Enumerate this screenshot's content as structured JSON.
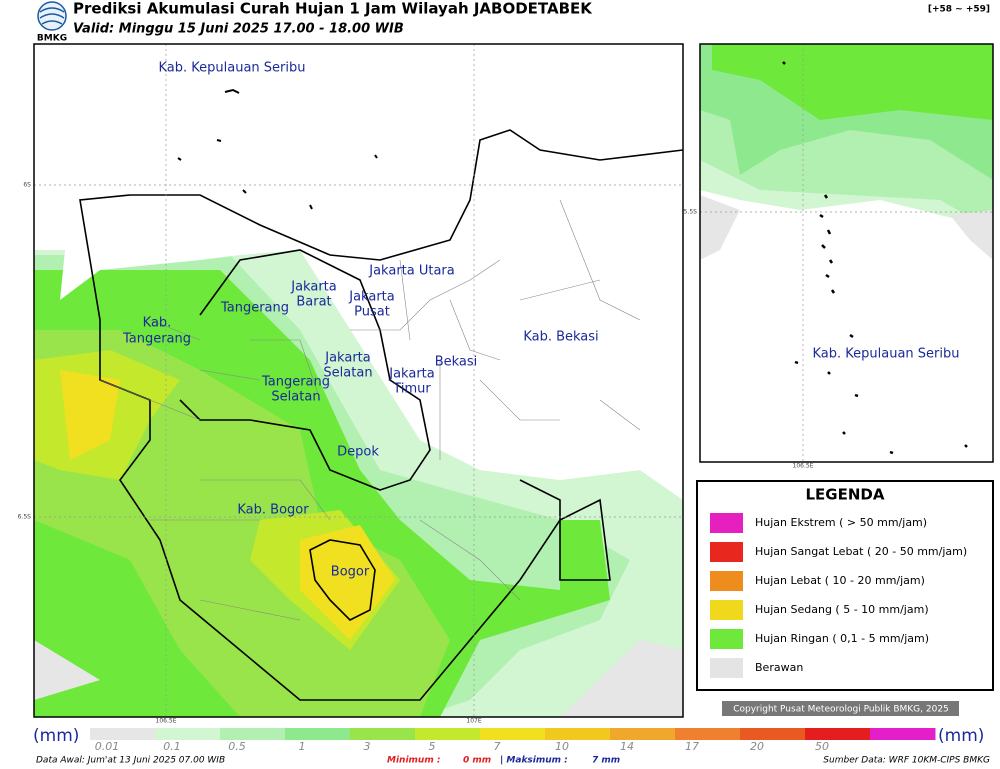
{
  "header": {
    "title": "Prediksi Akumulasi Curah Hujan 1 Jam Wilayah JABODETABEK",
    "valid": "Valid: Minggu 15 Juni 2025 17.00 - 18.00 WIB",
    "code": "[+58 ~ +59]",
    "logo": "BMKG"
  },
  "map": {
    "labels": [
      "Kab. Kepulauan Seribu",
      "Jakarta Utara",
      "Jakarta",
      "Barat",
      "Jakarta",
      "Pusat",
      "Tangerang",
      "Kab.",
      "Tangerang",
      "Jakarta",
      "Selatan",
      "Tangerang",
      "Selatan",
      "Jakarta",
      "Timur",
      "Bekasi",
      "Kab. Bekasi",
      "Depok",
      "Kab. Bogor",
      "Bogor"
    ],
    "axis": [
      "6S",
      "6.5S",
      "106.5E",
      "107E"
    ]
  },
  "inset": {
    "label": "Kab. Kepulauan Seribu",
    "axis": [
      "5.5S",
      "106.5E"
    ]
  },
  "legend": {
    "title": "LEGENDA",
    "items": [
      {
        "label": "Hujan Ekstrem ( > 50 mm/jam)",
        "color": "#e61fbf"
      },
      {
        "label": "Hujan Sangat Lebat ( 20 - 50 mm/jam)",
        "color": "#e8281e"
      },
      {
        "label": "Hujan Lebat ( 10 - 20 mm/jam)",
        "color": "#ef8c1e"
      },
      {
        "label": "Hujan Sedang ( 5 - 10 mm/jam)",
        "color": "#f0d81c"
      },
      {
        "label": "Hujan Ringan ( 0,1 - 5 mm/jam)",
        "color": "#6ee83a"
      },
      {
        "label": "Berawan",
        "color": "#e4e4e4"
      }
    ]
  },
  "copyright": "Copyright Pusat Meteorologi Publik BMKG, 2025",
  "colorbar": {
    "unit": "(mm)",
    "ticks": [
      "0.01",
      "0.1",
      "0.5",
      "1",
      "3",
      "5",
      "7",
      "10",
      "14",
      "17",
      "20",
      "50"
    ],
    "colors": [
      "#e6e6e6",
      "#d2f5d2",
      "#b2f0b2",
      "#8ee88e",
      "#98e44a",
      "#c4e82c",
      "#f0e020",
      "#f0c820",
      "#f0a82c",
      "#ee8030",
      "#e85a22",
      "#e41e1e",
      "#e41ec8"
    ]
  },
  "footer": {
    "source_init": "Data Awal: Jum'at 13 Juni 2025 07.00 WIB",
    "min_label": "Minimum :",
    "min_value": "0 mm",
    "max_label": "| Maksimum :",
    "max_value": "7 mm",
    "source": "Sumber Data: WRF 10KM-CIPS BMKG"
  }
}
